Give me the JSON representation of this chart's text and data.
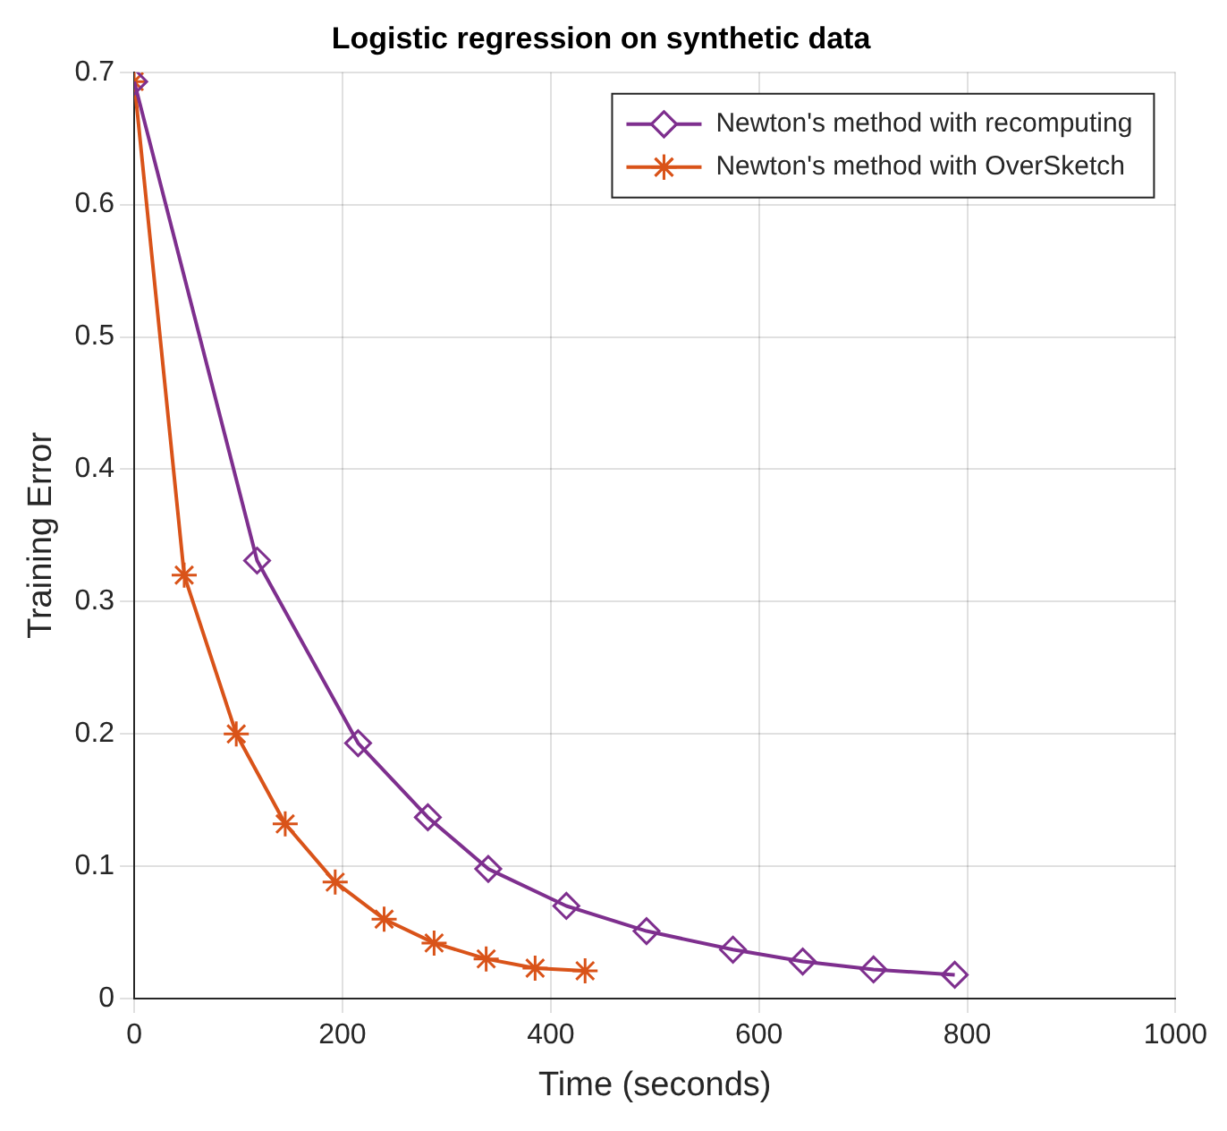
{
  "chart_data": {
    "type": "line",
    "title": "Logistic regression on synthetic data",
    "xlabel": "Time (seconds)",
    "ylabel": "Training Error",
    "xlim": [
      0,
      1000
    ],
    "xticks": [
      0,
      200,
      400,
      600,
      800,
      1000
    ],
    "ylim": [
      0,
      0.7
    ],
    "yticks": [
      0,
      0.1,
      0.2,
      0.3,
      0.4,
      0.5,
      0.6,
      0.7
    ],
    "grid": true,
    "legend": "top right",
    "line_style": "solid",
    "series": [
      {
        "name": "Newton's method with recomputing",
        "color": "#7e2f8e",
        "marker": "diamond",
        "x": [
          0,
          118,
          215,
          282,
          340,
          415,
          492,
          575,
          642,
          710,
          788
        ],
        "values": [
          0.693,
          0.331,
          0.193,
          0.137,
          0.098,
          0.07,
          0.051,
          0.037,
          0.028,
          0.022,
          0.018
        ]
      },
      {
        "name": "Newton's method with OverSketch",
        "color": "#d95319",
        "marker": "cross",
        "x": [
          0,
          48,
          98,
          145,
          193,
          240,
          288,
          338,
          385,
          433
        ],
        "values": [
          0.693,
          0.32,
          0.2,
          0.132,
          0.088,
          0.06,
          0.042,
          0.03,
          0.023,
          0.021
        ]
      }
    ]
  }
}
